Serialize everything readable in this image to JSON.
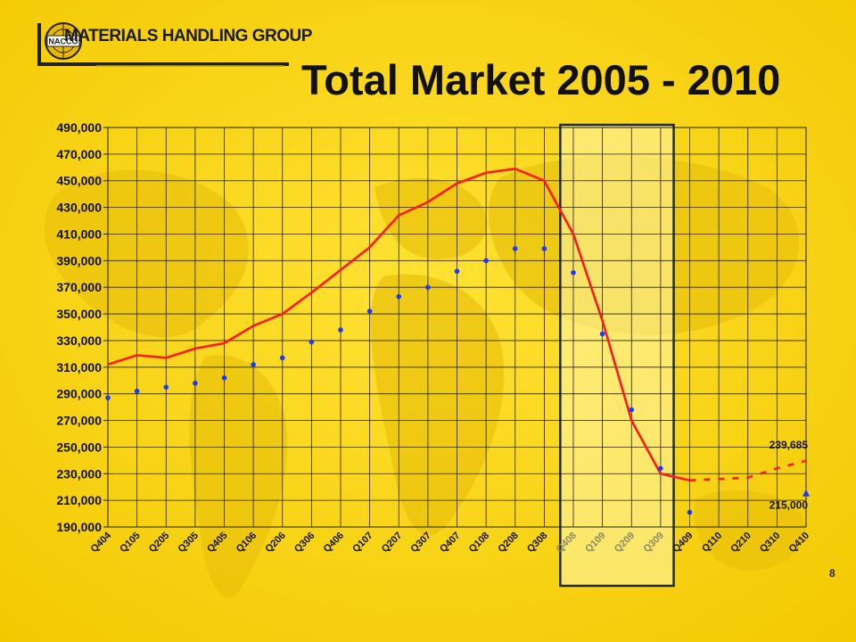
{
  "header": {
    "logo_badge": "NACCO",
    "logo_text": "MATERIALS HANDLING GROUP",
    "title": "Total Market 2005 - 2010"
  },
  "page_number": "8",
  "colors": {
    "background": "#f7d417",
    "line_series": "#ff1a1a",
    "dot_series": "#1a3aff",
    "highlight_box": "#1e2a3a"
  },
  "chart_data": {
    "type": "line",
    "categories": [
      "Q404",
      "Q105",
      "Q205",
      "Q305",
      "Q405",
      "Q106",
      "Q206",
      "Q306",
      "Q406",
      "Q107",
      "Q207",
      "Q307",
      "Q407",
      "Q108",
      "Q208",
      "Q308",
      "Q408",
      "Q109",
      "Q209",
      "Q309",
      "Q409",
      "Q110",
      "Q210",
      "Q310",
      "Q410"
    ],
    "ylim": [
      190000,
      490000
    ],
    "yticks": [
      "190,000",
      "210,000",
      "230,000",
      "250,000",
      "270,000",
      "290,000",
      "310,000",
      "330,000",
      "350,000",
      "370,000",
      "390,000",
      "410,000",
      "430,000",
      "450,000",
      "470,000",
      "490,000"
    ],
    "grid": true,
    "series": [
      {
        "style": "line",
        "values": [
          312000,
          319000,
          317000,
          324000,
          328000,
          341000,
          350000,
          366000,
          383000,
          400000,
          424000,
          434000,
          448000,
          456000,
          459000,
          450000,
          410000,
          345000,
          270000,
          230000,
          225000,
          null,
          null,
          null,
          null
        ]
      },
      {
        "style": "dashed",
        "values": [
          null,
          null,
          null,
          null,
          null,
          null,
          null,
          null,
          null,
          null,
          null,
          null,
          null,
          null,
          null,
          null,
          null,
          null,
          null,
          null,
          225000,
          226000,
          227000,
          234000,
          239685
        ]
      },
      {
        "style": "points",
        "values": [
          287000,
          292000,
          295000,
          298000,
          302000,
          312000,
          317000,
          329000,
          338000,
          352000,
          363000,
          370000,
          382000,
          390000,
          399000,
          399000,
          381000,
          335000,
          278000,
          234000,
          201000,
          null,
          null,
          null,
          215000
        ]
      }
    ],
    "annotations": [
      {
        "text": "239,685",
        "x": "Q410",
        "y": 239685
      },
      {
        "text": "215,000",
        "x": "Q410",
        "y": 215000
      }
    ],
    "highlight_range": [
      "Q408",
      "Q309"
    ]
  }
}
